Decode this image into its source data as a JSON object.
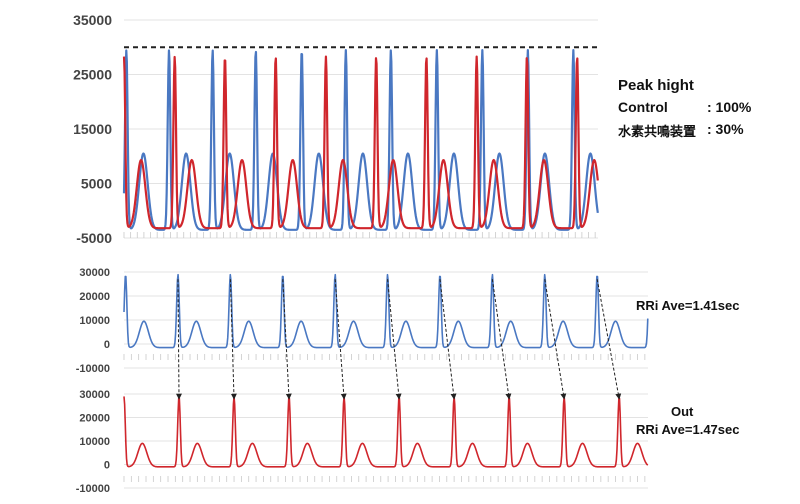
{
  "chart_data": [
    {
      "type": "line",
      "ylim": [
        -5000,
        35000
      ],
      "yticks": [
        "35000",
        "25000",
        "15000",
        "5000",
        "-5000"
      ],
      "threshold": 30000,
      "grid": true,
      "colors": {
        "control": "#4a78c2",
        "device": "#d0262c",
        "threshold": "#222222"
      },
      "series": [
        {
          "key": "control",
          "peaks": [
            0.5,
            9.5,
            18.7,
            27.8,
            37.5,
            46.8,
            56.3,
            66.0,
            75.6,
            85.2,
            94.8
          ]
        },
        {
          "key": "device",
          "peaks": [
            0.0,
            10.7,
            21.3,
            32.0,
            42.6,
            53.2,
            63.8,
            74.4,
            85.0,
            95.6
          ]
        }
      ],
      "annotations": {
        "title": "Peak hight",
        "control_label": "Control",
        "control_value": ": 100%",
        "device_label": "水素共鳴装置",
        "device_value": ": 30%"
      }
    },
    {
      "type": "line",
      "ylim": [
        -10000,
        30000
      ],
      "yticks": [
        "30000",
        "20000",
        "10000",
        "0",
        "-10000"
      ],
      "grid": true,
      "color": "#4a78c2",
      "series": [
        {
          "peaks": [
            0.3,
            10.3,
            20.3,
            30.3,
            40.3,
            50.3,
            60.3,
            70.3,
            80.3,
            90.3,
            100.3
          ]
        }
      ],
      "annotation": "RRi Ave=1.41sec"
    },
    {
      "type": "line",
      "ylim": [
        -10000,
        30000
      ],
      "yticks": [
        "30000",
        "20000",
        "10000",
        "0",
        "-10000"
      ],
      "grid": true,
      "color": "#d0262c",
      "series": [
        {
          "peaks": [
            0.0,
            10.5,
            21.0,
            31.5,
            42.0,
            52.5,
            63.0,
            73.5,
            84.0,
            94.5
          ]
        }
      ],
      "annotation_title": "Out",
      "annotation": "RRi Ave=1.47sec"
    }
  ]
}
